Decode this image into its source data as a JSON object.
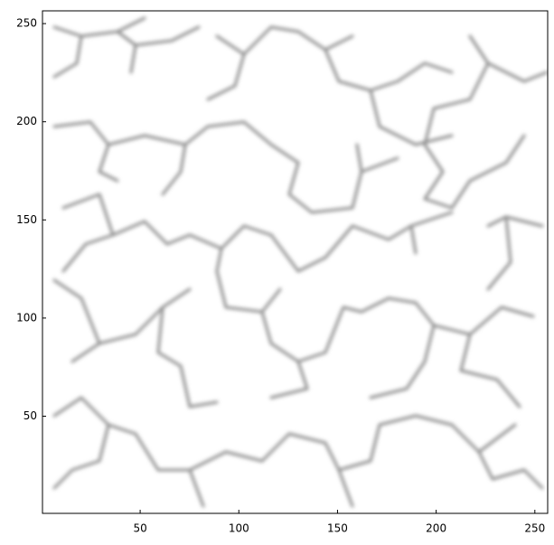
{
  "chart_data": {
    "type": "image",
    "xlim": [
      0.5,
      256.5
    ],
    "ylim": [
      0.5,
      256.5
    ],
    "xticks": [
      50,
      100,
      150,
      200,
      250
    ],
    "yticks": [
      50,
      100,
      150,
      200,
      250
    ]
  }
}
